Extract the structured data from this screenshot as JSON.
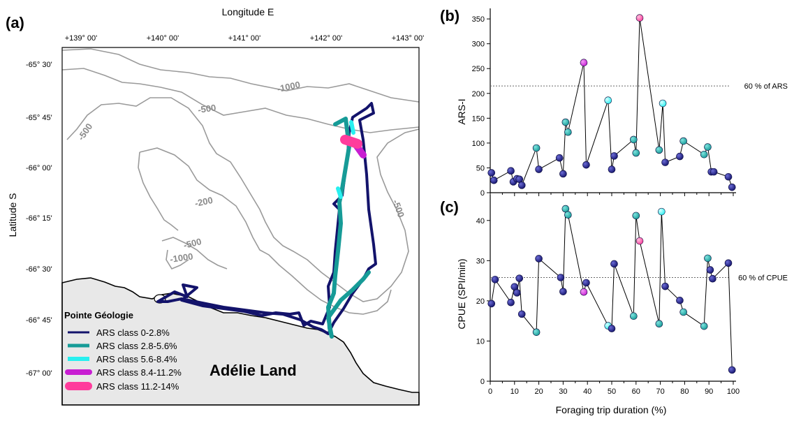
{
  "panels": {
    "a": "(a)",
    "b": "(b)",
    "c": "(c)"
  },
  "map": {
    "top_axis_title": "Longitude E",
    "left_axis_title": "Latitude S",
    "lon_ticks": [
      "+139° 00'",
      "+140° 00'",
      "+141° 00'",
      "+142° 00'",
      "+143° 00'"
    ],
    "lat_ticks": [
      "-65° 30'",
      "-65° 45'",
      "-66° 00'",
      "-66° 15'",
      "-66° 30'",
      "-66° 45'",
      "-67° 00'"
    ],
    "contour_labels": [
      "-1000",
      "-500",
      "-500",
      "-200",
      "-500",
      "-1000",
      "-500"
    ],
    "place_label": "Pointe Géologie",
    "region_label": "Adélie Land",
    "land_color": "#e8e8e8",
    "contour_color": "#9a9a9a",
    "legend": [
      {
        "label": "ARS class 0-2.8%",
        "color": "#13136b"
      },
      {
        "label": "ARS class 2.8-5.6%",
        "color": "#169b97"
      },
      {
        "label": "ARS class 5.6-8.4%",
        "color": "#28f0f0"
      },
      {
        "label": "ARS class 8.4-11.2%",
        "color": "#c81ed2"
      },
      {
        "label": "ARS class 11.2-14%",
        "color": "#ff3c9c"
      }
    ]
  },
  "chart_data": [
    {
      "type": "scatter",
      "panel": "(b)",
      "ylabel": "ARS-I",
      "ylim": [
        0,
        360
      ],
      "yticks": [
        0,
        50,
        100,
        150,
        200,
        250,
        300,
        350
      ],
      "reference_line": {
        "value": 215,
        "label": "60 % of ARS"
      },
      "points": [
        {
          "x": 0.5,
          "y": 40,
          "class": 0
        },
        {
          "x": 1.5,
          "y": 25,
          "class": 0
        },
        {
          "x": 8.5,
          "y": 44,
          "class": 0
        },
        {
          "x": 9.5,
          "y": 22,
          "class": 0
        },
        {
          "x": 11,
          "y": 28,
          "class": 0
        },
        {
          "x": 12,
          "y": 27,
          "class": 0
        },
        {
          "x": 13,
          "y": 15,
          "class": 0
        },
        {
          "x": 19,
          "y": 90,
          "class": 1
        },
        {
          "x": 20,
          "y": 47,
          "class": 0
        },
        {
          "x": 28.5,
          "y": 70,
          "class": 0
        },
        {
          "x": 30,
          "y": 38,
          "class": 0
        },
        {
          "x": 31,
          "y": 142,
          "class": 1
        },
        {
          "x": 32,
          "y": 122,
          "class": 1
        },
        {
          "x": 38.5,
          "y": 262,
          "class": 3
        },
        {
          "x": 39.5,
          "y": 56,
          "class": 0
        },
        {
          "x": 48.5,
          "y": 186,
          "class": 2
        },
        {
          "x": 50,
          "y": 47,
          "class": 0
        },
        {
          "x": 51,
          "y": 74,
          "class": 0
        },
        {
          "x": 59,
          "y": 107,
          "class": 1
        },
        {
          "x": 60,
          "y": 80,
          "class": 1
        },
        {
          "x": 61.5,
          "y": 352,
          "class": 4
        },
        {
          "x": 69.5,
          "y": 86,
          "class": 1
        },
        {
          "x": 71,
          "y": 180,
          "class": 2
        },
        {
          "x": 72,
          "y": 61,
          "class": 0
        },
        {
          "x": 78,
          "y": 73,
          "class": 0
        },
        {
          "x": 79.5,
          "y": 104,
          "class": 1
        },
        {
          "x": 88,
          "y": 77,
          "class": 1
        },
        {
          "x": 89.5,
          "y": 92,
          "class": 1
        },
        {
          "x": 91,
          "y": 42,
          "class": 0
        },
        {
          "x": 92,
          "y": 42,
          "class": 0
        },
        {
          "x": 98,
          "y": 32,
          "class": 0
        },
        {
          "x": 99.5,
          "y": 11,
          "class": 0
        }
      ]
    },
    {
      "type": "scatter",
      "panel": "(c)",
      "xlabel": "Foraging trip duration (%)",
      "ylabel": "CPUE (SPI/min)",
      "xlim": [
        0,
        100
      ],
      "xticks": [
        0,
        10,
        20,
        30,
        40,
        50,
        60,
        70,
        80,
        90,
        100
      ],
      "ylim": [
        0,
        45
      ],
      "yticks": [
        0,
        10,
        20,
        30,
        40
      ],
      "reference_line": {
        "value": 25.8,
        "label": "60 % of CPUE"
      },
      "points": [
        {
          "x": 0.5,
          "y": 19.3,
          "class": 0
        },
        {
          "x": 2,
          "y": 25.3,
          "class": 0
        },
        {
          "x": 8.5,
          "y": 19.6,
          "class": 0
        },
        {
          "x": 10,
          "y": 23.5,
          "class": 0
        },
        {
          "x": 11,
          "y": 22,
          "class": 0
        },
        {
          "x": 12,
          "y": 25.6,
          "class": 0
        },
        {
          "x": 13,
          "y": 16.7,
          "class": 0
        },
        {
          "x": 19,
          "y": 12.2,
          "class": 1
        },
        {
          "x": 20,
          "y": 30.5,
          "class": 0
        },
        {
          "x": 29,
          "y": 25.8,
          "class": 0
        },
        {
          "x": 30,
          "y": 22.3,
          "class": 0
        },
        {
          "x": 31,
          "y": 42.9,
          "class": 1
        },
        {
          "x": 32,
          "y": 41.4,
          "class": 1
        },
        {
          "x": 38.5,
          "y": 22.2,
          "class": 3
        },
        {
          "x": 39.5,
          "y": 24.5,
          "class": 0
        },
        {
          "x": 48.5,
          "y": 13.8,
          "class": 2
        },
        {
          "x": 50,
          "y": 13.1,
          "class": 0
        },
        {
          "x": 51,
          "y": 29.2,
          "class": 0
        },
        {
          "x": 59,
          "y": 16.2,
          "class": 1
        },
        {
          "x": 60,
          "y": 41.2,
          "class": 1
        },
        {
          "x": 61.5,
          "y": 34.9,
          "class": 4
        },
        {
          "x": 69.5,
          "y": 14.3,
          "class": 1
        },
        {
          "x": 70.5,
          "y": 42.2,
          "class": 2
        },
        {
          "x": 72,
          "y": 23.6,
          "class": 0
        },
        {
          "x": 78,
          "y": 20.1,
          "class": 0
        },
        {
          "x": 79.5,
          "y": 17.2,
          "class": 1
        },
        {
          "x": 88,
          "y": 13.7,
          "class": 1
        },
        {
          "x": 89.5,
          "y": 30.6,
          "class": 1
        },
        {
          "x": 90.5,
          "y": 27.7,
          "class": 0
        },
        {
          "x": 91.5,
          "y": 25.5,
          "class": 0
        },
        {
          "x": 98,
          "y": 29.4,
          "class": 0
        },
        {
          "x": 99.5,
          "y": 2.8,
          "class": 0
        }
      ]
    }
  ]
}
